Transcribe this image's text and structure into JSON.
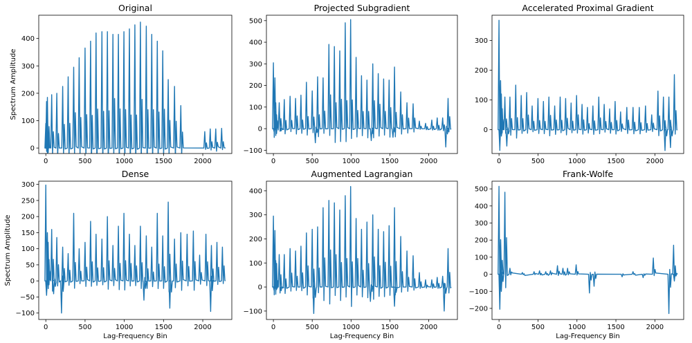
{
  "chart_data": [
    {
      "type": "line",
      "title": "Original",
      "xlabel": "",
      "ylabel": "Spectrum Amplitude",
      "xlim": [
        -90,
        2370
      ],
      "ylim": [
        -20,
        485
      ],
      "xticks": [
        0,
        500,
        1000,
        1500,
        2000
      ],
      "yticks": [
        0,
        100,
        200,
        300,
        400
      ],
      "baseline": 0,
      "peaks": [
        {
          "x": 0,
          "y": 90
        },
        {
          "x": 10,
          "y": 170
        },
        {
          "x": 20,
          "y": 185
        },
        {
          "x": 75,
          "y": 195
        },
        {
          "x": 140,
          "y": 200
        },
        {
          "x": 215,
          "y": 225
        },
        {
          "x": 285,
          "y": 260
        },
        {
          "x": 355,
          "y": 295
        },
        {
          "x": 425,
          "y": 330
        },
        {
          "x": 500,
          "y": 365
        },
        {
          "x": 570,
          "y": 390
        },
        {
          "x": 640,
          "y": 420
        },
        {
          "x": 715,
          "y": 425
        },
        {
          "x": 785,
          "y": 425
        },
        {
          "x": 855,
          "y": 415
        },
        {
          "x": 925,
          "y": 415
        },
        {
          "x": 995,
          "y": 425
        },
        {
          "x": 1065,
          "y": 435
        },
        {
          "x": 1135,
          "y": 450
        },
        {
          "x": 1205,
          "y": 460
        },
        {
          "x": 1280,
          "y": 445
        },
        {
          "x": 1350,
          "y": 415
        },
        {
          "x": 1420,
          "y": 390
        },
        {
          "x": 1490,
          "y": 355
        },
        {
          "x": 1560,
          "y": 250
        },
        {
          "x": 1640,
          "y": 225
        },
        {
          "x": 1720,
          "y": 155
        },
        {
          "x": 2025,
          "y": 60
        },
        {
          "x": 2095,
          "y": 70
        },
        {
          "x": 2165,
          "y": 70
        },
        {
          "x": 2240,
          "y": 72
        }
      ]
    },
    {
      "type": "line",
      "title": "Projected Subgradient",
      "xlabel": "",
      "ylabel": "",
      "xlim": [
        -90,
        2370
      ],
      "ylim": [
        -115,
        525
      ],
      "xticks": [
        0,
        500,
        1000,
        1500,
        2000
      ],
      "yticks": [
        -100,
        0,
        100,
        200,
        300,
        400,
        500
      ],
      "baseline": 0,
      "peaks": [
        {
          "x": 0,
          "y": 305
        },
        {
          "x": 10,
          "y": -15
        },
        {
          "x": 20,
          "y": 235
        },
        {
          "x": 30,
          "y": 120
        },
        {
          "x": 75,
          "y": 120
        },
        {
          "x": 100,
          "y": -10
        },
        {
          "x": 140,
          "y": 135
        },
        {
          "x": 215,
          "y": 150
        },
        {
          "x": 285,
          "y": 140
        },
        {
          "x": 355,
          "y": 155
        },
        {
          "x": 425,
          "y": 215
        },
        {
          "x": 500,
          "y": 175
        },
        {
          "x": 570,
          "y": 240
        },
        {
          "x": 640,
          "y": 235
        },
        {
          "x": 715,
          "y": 390
        },
        {
          "x": 785,
          "y": 380
        },
        {
          "x": 855,
          "y": 360
        },
        {
          "x": 925,
          "y": 490
        },
        {
          "x": 995,
          "y": 505
        },
        {
          "x": 1065,
          "y": 330
        },
        {
          "x": 1135,
          "y": 245
        },
        {
          "x": 1205,
          "y": 225
        },
        {
          "x": 1280,
          "y": 300
        },
        {
          "x": 1350,
          "y": 255
        },
        {
          "x": 1420,
          "y": 230
        },
        {
          "x": 1490,
          "y": 225
        },
        {
          "x": 1560,
          "y": 285
        },
        {
          "x": 1640,
          "y": 170
        },
        {
          "x": 1720,
          "y": 120
        },
        {
          "x": 1800,
          "y": 115
        },
        {
          "x": 1880,
          "y": 35
        },
        {
          "x": 1960,
          "y": 25
        },
        {
          "x": 2040,
          "y": 40
        },
        {
          "x": 2110,
          "y": 50
        },
        {
          "x": 2180,
          "y": 50
        },
        {
          "x": 2250,
          "y": 140
        },
        {
          "x": 540,
          "y": -65
        },
        {
          "x": 1260,
          "y": -55
        },
        {
          "x": 1540,
          "y": -40
        },
        {
          "x": 2220,
          "y": -85
        }
      ]
    },
    {
      "type": "line",
      "title": "Accelerated Proximal Gradient",
      "xlabel": "",
      "ylabel": "",
      "xlim": [
        -90,
        2370
      ],
      "ylim": [
        -80,
        385
      ],
      "xticks": [
        0,
        500,
        1000,
        1500,
        2000
      ],
      "yticks": [
        0,
        100,
        200,
        300
      ],
      "baseline": 0,
      "peaks": [
        {
          "x": 0,
          "y": 368
        },
        {
          "x": 10,
          "y": -65
        },
        {
          "x": 20,
          "y": 165
        },
        {
          "x": 30,
          "y": 120
        },
        {
          "x": 75,
          "y": 110
        },
        {
          "x": 100,
          "y": -55
        },
        {
          "x": 140,
          "y": 110
        },
        {
          "x": 215,
          "y": 150
        },
        {
          "x": 285,
          "y": 115
        },
        {
          "x": 355,
          "y": 125
        },
        {
          "x": 425,
          "y": 80
        },
        {
          "x": 500,
          "y": 105
        },
        {
          "x": 570,
          "y": 95
        },
        {
          "x": 640,
          "y": 110
        },
        {
          "x": 715,
          "y": 80
        },
        {
          "x": 785,
          "y": 110
        },
        {
          "x": 855,
          "y": 105
        },
        {
          "x": 925,
          "y": 90
        },
        {
          "x": 995,
          "y": 115
        },
        {
          "x": 1065,
          "y": 85
        },
        {
          "x": 1135,
          "y": 75
        },
        {
          "x": 1205,
          "y": 80
        },
        {
          "x": 1280,
          "y": 110
        },
        {
          "x": 1350,
          "y": 85
        },
        {
          "x": 1420,
          "y": 70
        },
        {
          "x": 1490,
          "y": 95
        },
        {
          "x": 1560,
          "y": 60
        },
        {
          "x": 1640,
          "y": 75
        },
        {
          "x": 1720,
          "y": 75
        },
        {
          "x": 1800,
          "y": 75
        },
        {
          "x": 1880,
          "y": 80
        },
        {
          "x": 1960,
          "y": 50
        },
        {
          "x": 2040,
          "y": 130
        },
        {
          "x": 2110,
          "y": 110
        },
        {
          "x": 2180,
          "y": 110
        },
        {
          "x": 2250,
          "y": 185
        },
        {
          "x": 2130,
          "y": -70
        },
        {
          "x": 2200,
          "y": -60
        }
      ]
    },
    {
      "type": "line",
      "title": "Dense",
      "xlabel": "Lag-Frequency Bin",
      "ylabel": "Spectrum Amplitude",
      "xlim": [
        -90,
        2370
      ],
      "ylim": [
        -120,
        310
      ],
      "xticks": [
        0,
        500,
        1000,
        1500,
        2000
      ],
      "yticks": [
        -100,
        -50,
        0,
        50,
        100,
        150,
        200,
        250,
        300
      ],
      "baseline": 0,
      "peaks": [
        {
          "x": 0,
          "y": 298
        },
        {
          "x": 10,
          "y": -45
        },
        {
          "x": 20,
          "y": 150
        },
        {
          "x": 30,
          "y": 120
        },
        {
          "x": 75,
          "y": 160
        },
        {
          "x": 100,
          "y": -40
        },
        {
          "x": 140,
          "y": 135
        },
        {
          "x": 215,
          "y": 105
        },
        {
          "x": 285,
          "y": 85
        },
        {
          "x": 355,
          "y": 210
        },
        {
          "x": 425,
          "y": 100
        },
        {
          "x": 500,
          "y": 120
        },
        {
          "x": 570,
          "y": 185
        },
        {
          "x": 640,
          "y": 145
        },
        {
          "x": 715,
          "y": 130
        },
        {
          "x": 785,
          "y": 200
        },
        {
          "x": 855,
          "y": 110
        },
        {
          "x": 925,
          "y": 170
        },
        {
          "x": 995,
          "y": 210
        },
        {
          "x": 1065,
          "y": 145
        },
        {
          "x": 1135,
          "y": 110
        },
        {
          "x": 1205,
          "y": 170
        },
        {
          "x": 1280,
          "y": 140
        },
        {
          "x": 1350,
          "y": 105
        },
        {
          "x": 1420,
          "y": 210
        },
        {
          "x": 1490,
          "y": 140
        },
        {
          "x": 1560,
          "y": 245
        },
        {
          "x": 1640,
          "y": 130
        },
        {
          "x": 1720,
          "y": 150
        },
        {
          "x": 1800,
          "y": 145
        },
        {
          "x": 1880,
          "y": 155
        },
        {
          "x": 1960,
          "y": 80
        },
        {
          "x": 2040,
          "y": 145
        },
        {
          "x": 2110,
          "y": 110
        },
        {
          "x": 2180,
          "y": 120
        },
        {
          "x": 2250,
          "y": 105
        },
        {
          "x": 200,
          "y": -100
        },
        {
          "x": 1250,
          "y": -60
        },
        {
          "x": 1580,
          "y": -85
        },
        {
          "x": 2100,
          "y": -95
        }
      ]
    },
    {
      "type": "line",
      "title": "Augmented Lagrangian",
      "xlabel": "Lag-Frequency Bin",
      "ylabel": "",
      "xlim": [
        -90,
        2370
      ],
      "ylim": [
        -135,
        440
      ],
      "xticks": [
        0,
        500,
        1000,
        1500,
        2000
      ],
      "yticks": [
        -100,
        0,
        100,
        200,
        300,
        400
      ],
      "baseline": 0,
      "peaks": [
        {
          "x": 0,
          "y": 295
        },
        {
          "x": 10,
          "y": -15
        },
        {
          "x": 20,
          "y": 235
        },
        {
          "x": 30,
          "y": 110
        },
        {
          "x": 75,
          "y": 135
        },
        {
          "x": 100,
          "y": -15
        },
        {
          "x": 140,
          "y": 135
        },
        {
          "x": 215,
          "y": 160
        },
        {
          "x": 285,
          "y": 150
        },
        {
          "x": 355,
          "y": 170
        },
        {
          "x": 425,
          "y": 225
        },
        {
          "x": 500,
          "y": 240
        },
        {
          "x": 570,
          "y": 250
        },
        {
          "x": 640,
          "y": 330
        },
        {
          "x": 715,
          "y": 360
        },
        {
          "x": 785,
          "y": 350
        },
        {
          "x": 855,
          "y": 320
        },
        {
          "x": 925,
          "y": 380
        },
        {
          "x": 995,
          "y": 418
        },
        {
          "x": 1065,
          "y": 285
        },
        {
          "x": 1135,
          "y": 240
        },
        {
          "x": 1205,
          "y": 270
        },
        {
          "x": 1280,
          "y": 300
        },
        {
          "x": 1350,
          "y": 240
        },
        {
          "x": 1420,
          "y": 230
        },
        {
          "x": 1490,
          "y": 255
        },
        {
          "x": 1560,
          "y": 330
        },
        {
          "x": 1640,
          "y": 210
        },
        {
          "x": 1720,
          "y": 150
        },
        {
          "x": 1800,
          "y": 130
        },
        {
          "x": 1880,
          "y": 60
        },
        {
          "x": 1960,
          "y": 30
        },
        {
          "x": 2040,
          "y": 30
        },
        {
          "x": 2110,
          "y": 40
        },
        {
          "x": 2180,
          "y": 45
        },
        {
          "x": 2250,
          "y": 160
        },
        {
          "x": 520,
          "y": -110
        },
        {
          "x": 1250,
          "y": -60
        },
        {
          "x": 1560,
          "y": -80
        },
        {
          "x": 2200,
          "y": -100
        }
      ]
    },
    {
      "type": "line",
      "title": "Frank-Wolfe",
      "xlabel": "Lag-Frequency Bin",
      "ylabel": "",
      "xlim": [
        -90,
        2370
      ],
      "ylim": [
        -265,
        545
      ],
      "xticks": [
        0,
        500,
        1000,
        1500,
        2000
      ],
      "yticks": [
        -200,
        -100,
        0,
        100,
        200,
        300,
        400,
        500
      ],
      "baseline": 0,
      "peaks": [
        {
          "x": 0,
          "y": 515
        },
        {
          "x": 10,
          "y": -205
        },
        {
          "x": 20,
          "y": 190
        },
        {
          "x": 30,
          "y": -100
        },
        {
          "x": 75,
          "y": 480
        },
        {
          "x": 140,
          "y": 35
        },
        {
          "x": 300,
          "y": 10
        },
        {
          "x": 450,
          "y": 15
        },
        {
          "x": 520,
          "y": 20
        },
        {
          "x": 600,
          "y": 15
        },
        {
          "x": 660,
          "y": 20
        },
        {
          "x": 750,
          "y": 50
        },
        {
          "x": 820,
          "y": 35
        },
        {
          "x": 880,
          "y": 35
        },
        {
          "x": 990,
          "y": 55
        },
        {
          "x": 1160,
          "y": -110
        },
        {
          "x": 1220,
          "y": -70
        },
        {
          "x": 1720,
          "y": 15
        },
        {
          "x": 1980,
          "y": 95
        },
        {
          "x": 2180,
          "y": -230
        },
        {
          "x": 2240,
          "y": 170
        },
        {
          "x": 2250,
          "y": -40
        },
        {
          "x": 1850,
          "y": -20
        },
        {
          "x": 1580,
          "y": -15
        }
      ]
    }
  ]
}
